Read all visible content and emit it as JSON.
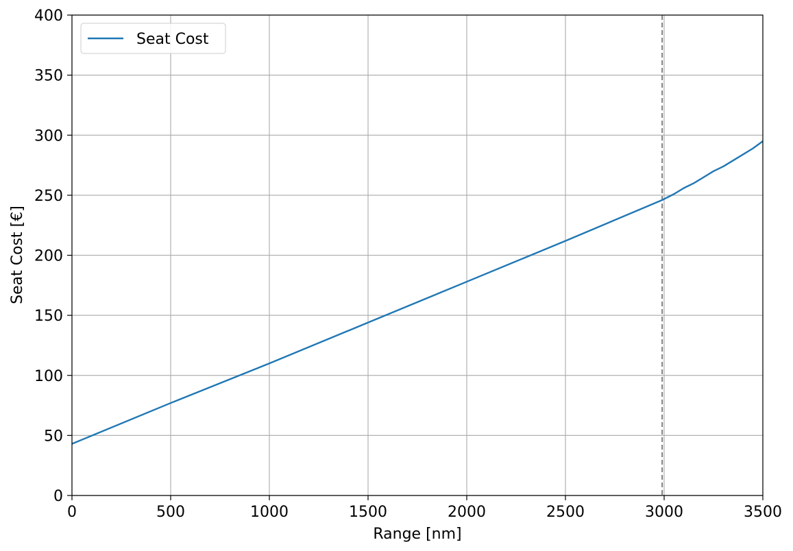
{
  "chart_data": {
    "type": "line",
    "xlabel": "Range [nm]",
    "ylabel": "Seat Cost [€]",
    "xlim": [
      0,
      3500
    ],
    "ylim": [
      0,
      400
    ],
    "xticks": [
      0,
      500,
      1000,
      1500,
      2000,
      2500,
      3000,
      3500
    ],
    "yticks": [
      0,
      50,
      100,
      150,
      200,
      250,
      300,
      350,
      400
    ],
    "grid": true,
    "legend_position": "top-left",
    "series": [
      {
        "name": "Seat Cost",
        "color": "#1f77b4",
        "x": [
          0,
          500,
          1000,
          1500,
          2000,
          2500,
          2990,
          3050,
          3100,
          3150,
          3200,
          3250,
          3300,
          3350,
          3400,
          3450,
          3500
        ],
        "y": [
          43,
          77,
          110,
          144,
          178,
          212,
          246,
          251,
          256,
          260,
          265,
          270,
          274,
          279,
          284,
          289,
          295
        ]
      }
    ],
    "reference_lines": [
      {
        "orientation": "vertical",
        "x": 2990,
        "style": "dashed",
        "color": "#808080"
      }
    ]
  }
}
